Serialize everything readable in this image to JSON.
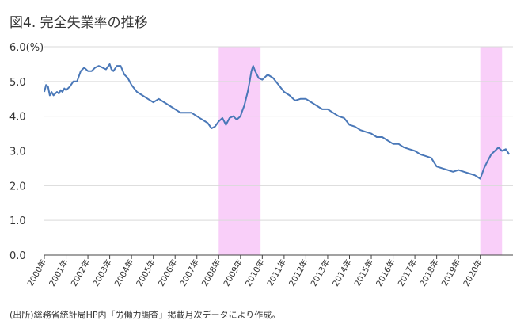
{
  "chart_title": "図4. 完全失業率の推移",
  "source_note": "(出所)総務省統計局HP内「労働力調査」掲載月次データにより作成。",
  "colors": {
    "line": "#4a78b8",
    "recession": "#f9cff9",
    "grid": "#d9d9d9",
    "axis": "#444444"
  },
  "chart_data": {
    "type": "line",
    "title": "図4. 完全失業率の推移",
    "xlabel": "",
    "ylabel": "",
    "y_unit_label": "6.0(%)",
    "ylim": [
      0,
      6
    ],
    "xlim": [
      2000.0,
      2021.5
    ],
    "y_ticks": [
      0,
      1,
      2,
      3,
      4,
      5,
      6
    ],
    "y_tick_labels": [
      "0.0",
      "1.0",
      "2.0",
      "3.0",
      "4.0",
      "5.0",
      "6.0(%)"
    ],
    "x_ticks": [
      2000,
      2001,
      2002,
      2003,
      2004,
      2005,
      2006,
      2007,
      2008,
      2009,
      2010,
      2011,
      2012,
      2013,
      2014,
      2015,
      2016,
      2017,
      2018,
      2019,
      2020
    ],
    "x_tick_labels": [
      "2000年",
      "2001年",
      "2002年",
      "2003年",
      "2004年",
      "2005年",
      "2006年",
      "2007年",
      "2008年",
      "2009年",
      "2010年",
      "2011年",
      "2012年",
      "2013年",
      "2014年",
      "2015年",
      "2016年",
      "2017年",
      "2018年",
      "2019年",
      "2020年"
    ],
    "grid": true,
    "shaded_periods": [
      [
        2008.0,
        2009.92
      ],
      [
        2020.0,
        2021.0
      ]
    ],
    "series": [
      {
        "x": [
          2000.0,
          2000.08,
          2000.17,
          2000.25,
          2000.33,
          2000.42,
          2000.5,
          2000.58,
          2000.67,
          2000.75,
          2000.83,
          2000.92,
          2001.0,
          2001.17,
          2001.33,
          2001.5,
          2001.67,
          2001.83,
          2002.0,
          2002.17,
          2002.33,
          2002.5,
          2002.67,
          2002.83,
          2003.0,
          2003.08,
          2003.17,
          2003.33,
          2003.5,
          2003.67,
          2003.83,
          2004.0,
          2004.25,
          2004.5,
          2004.75,
          2005.0,
          2005.25,
          2005.5,
          2005.75,
          2006.0,
          2006.25,
          2006.5,
          2006.75,
          2007.0,
          2007.25,
          2007.5,
          2007.67,
          2007.83,
          2008.0,
          2008.17,
          2008.33,
          2008.5,
          2008.67,
          2008.83,
          2009.0,
          2009.08,
          2009.17,
          2009.25,
          2009.33,
          2009.42,
          2009.5,
          2009.58,
          2009.67,
          2009.75,
          2009.83,
          2010.0,
          2010.25,
          2010.5,
          2010.75,
          2011.0,
          2011.25,
          2011.5,
          2011.75,
          2012.0,
          2012.25,
          2012.5,
          2012.75,
          2013.0,
          2013.25,
          2013.5,
          2013.75,
          2014.0,
          2014.25,
          2014.5,
          2014.75,
          2015.0,
          2015.25,
          2015.5,
          2015.75,
          2016.0,
          2016.25,
          2016.5,
          2016.75,
          2017.0,
          2017.25,
          2017.5,
          2017.75,
          2018.0,
          2018.25,
          2018.5,
          2018.75,
          2019.0,
          2019.25,
          2019.5,
          2019.75,
          2020.0,
          2020.17,
          2020.33,
          2020.5,
          2020.67,
          2020.83,
          2021.0,
          2021.17,
          2021.33
        ],
        "values": [
          4.7,
          4.9,
          4.85,
          4.6,
          4.7,
          4.6,
          4.65,
          4.7,
          4.65,
          4.75,
          4.7,
          4.8,
          4.75,
          4.85,
          5.0,
          5.0,
          5.3,
          5.4,
          5.3,
          5.3,
          5.4,
          5.45,
          5.4,
          5.35,
          5.5,
          5.35,
          5.3,
          5.45,
          5.45,
          5.2,
          5.1,
          4.9,
          4.7,
          4.6,
          4.5,
          4.4,
          4.5,
          4.4,
          4.3,
          4.2,
          4.1,
          4.1,
          4.1,
          4.0,
          3.9,
          3.8,
          3.65,
          3.7,
          3.85,
          3.95,
          3.75,
          3.95,
          4.0,
          3.9,
          4.0,
          4.15,
          4.3,
          4.5,
          4.7,
          5.0,
          5.3,
          5.45,
          5.3,
          5.2,
          5.1,
          5.05,
          5.2,
          5.1,
          4.9,
          4.7,
          4.6,
          4.45,
          4.5,
          4.5,
          4.4,
          4.3,
          4.2,
          4.2,
          4.1,
          4.0,
          3.95,
          3.75,
          3.7,
          3.6,
          3.55,
          3.5,
          3.4,
          3.4,
          3.3,
          3.2,
          3.2,
          3.1,
          3.05,
          3.0,
          2.9,
          2.85,
          2.8,
          2.55,
          2.5,
          2.45,
          2.4,
          2.45,
          2.4,
          2.35,
          2.3,
          2.2,
          2.5,
          2.7,
          2.9,
          3.0,
          3.1,
          3.0,
          3.05,
          2.9
        ]
      }
    ]
  }
}
